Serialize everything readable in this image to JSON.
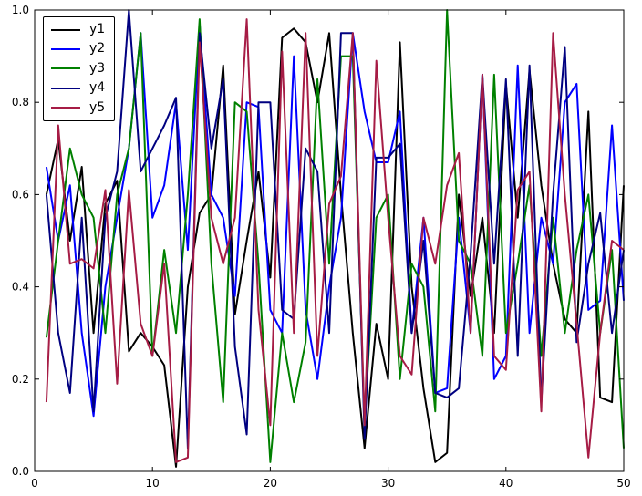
{
  "figure": {
    "background": "#ffffff",
    "frame_color": "#000000"
  },
  "chart_data": {
    "type": "line",
    "title": "",
    "xlabel": "",
    "ylabel": "",
    "xlim": [
      0,
      50
    ],
    "ylim": [
      0.0,
      1.0
    ],
    "x_tick_labels": [
      "0",
      "10",
      "20",
      "30",
      "40",
      "50"
    ],
    "x_tick_values": [
      0,
      10,
      20,
      30,
      40,
      50
    ],
    "y_tick_labels": [
      "0.0",
      "0.2",
      "0.4",
      "0.6",
      "0.8",
      "1.0"
    ],
    "y_tick_values": [
      0.0,
      0.2,
      0.4,
      0.6,
      0.8,
      1.0
    ],
    "grid": false,
    "legend_position": "upper-left",
    "line_width": 2,
    "x": [
      1,
      2,
      3,
      4,
      5,
      6,
      7,
      8,
      9,
      10,
      11,
      12,
      13,
      14,
      15,
      16,
      17,
      18,
      19,
      20,
      21,
      22,
      23,
      24,
      25,
      26,
      27,
      28,
      29,
      30,
      31,
      32,
      33,
      34,
      35,
      36,
      37,
      38,
      39,
      40,
      41,
      42,
      43,
      44,
      45,
      46,
      47,
      48,
      49,
      50
    ],
    "series": [
      {
        "name": "y1",
        "color": "#000000",
        "values": [
          0.6,
          0.72,
          0.5,
          0.66,
          0.3,
          0.58,
          0.63,
          0.26,
          0.3,
          0.27,
          0.23,
          0.01,
          0.4,
          0.56,
          0.6,
          0.88,
          0.34,
          0.5,
          0.65,
          0.42,
          0.94,
          0.96,
          0.93,
          0.8,
          0.95,
          0.6,
          0.3,
          0.05,
          0.32,
          0.2,
          0.93,
          0.4,
          0.18,
          0.02,
          0.04,
          0.6,
          0.38,
          0.55,
          0.3,
          0.84,
          0.55,
          0.87,
          0.62,
          0.45,
          0.33,
          0.3,
          0.78,
          0.16,
          0.15,
          0.62
        ]
      },
      {
        "name": "y2",
        "color": "#0000ff",
        "values": [
          0.66,
          0.5,
          0.62,
          0.3,
          0.12,
          0.4,
          0.55,
          0.7,
          0.95,
          0.55,
          0.62,
          0.8,
          0.48,
          0.97,
          0.6,
          0.55,
          0.38,
          0.8,
          0.79,
          0.35,
          0.3,
          0.9,
          0.35,
          0.2,
          0.4,
          0.55,
          0.95,
          0.78,
          0.67,
          0.67,
          0.78,
          0.3,
          0.55,
          0.17,
          0.18,
          0.55,
          0.3,
          0.86,
          0.2,
          0.25,
          0.88,
          0.3,
          0.55,
          0.45,
          0.8,
          0.84,
          0.35,
          0.37,
          0.75,
          0.37
        ]
      },
      {
        "name": "y3",
        "color": "#008000",
        "values": [
          0.29,
          0.5,
          0.7,
          0.6,
          0.55,
          0.3,
          0.6,
          0.7,
          0.95,
          0.25,
          0.48,
          0.3,
          0.6,
          0.98,
          0.45,
          0.15,
          0.8,
          0.78,
          0.45,
          0.02,
          0.3,
          0.15,
          0.28,
          0.85,
          0.45,
          0.9,
          0.9,
          0.1,
          0.55,
          0.6,
          0.2,
          0.45,
          0.4,
          0.13,
          1.0,
          0.5,
          0.45,
          0.25,
          0.86,
          0.3,
          0.45,
          0.62,
          0.25,
          0.55,
          0.3,
          0.48,
          0.6,
          0.3,
          0.48,
          0.05
        ]
      },
      {
        "name": "y4",
        "color": "#000080",
        "values": [
          0.6,
          0.3,
          0.17,
          0.55,
          0.13,
          0.55,
          0.65,
          1.0,
          0.65,
          0.7,
          0.75,
          0.81,
          0.05,
          0.95,
          0.7,
          0.85,
          0.27,
          0.08,
          0.8,
          0.8,
          0.35,
          0.33,
          0.7,
          0.65,
          0.3,
          0.95,
          0.95,
          0.07,
          0.68,
          0.68,
          0.71,
          0.3,
          0.5,
          0.17,
          0.16,
          0.18,
          0.47,
          0.86,
          0.45,
          0.85,
          0.25,
          0.88,
          0.15,
          0.6,
          0.92,
          0.28,
          0.45,
          0.56,
          0.3,
          0.48
        ]
      },
      {
        "name": "y5",
        "color": "#a61c45",
        "values": [
          0.15,
          0.75,
          0.45,
          0.46,
          0.44,
          0.61,
          0.19,
          0.61,
          0.32,
          0.25,
          0.45,
          0.02,
          0.03,
          0.93,
          0.55,
          0.45,
          0.55,
          0.98,
          0.35,
          0.1,
          0.91,
          0.3,
          0.95,
          0.25,
          0.58,
          0.64,
          0.95,
          0.1,
          0.89,
          0.55,
          0.25,
          0.21,
          0.55,
          0.45,
          0.62,
          0.69,
          0.3,
          0.86,
          0.25,
          0.22,
          0.61,
          0.65,
          0.13,
          0.95,
          0.6,
          0.32,
          0.03,
          0.3,
          0.5,
          0.48
        ]
      }
    ]
  }
}
